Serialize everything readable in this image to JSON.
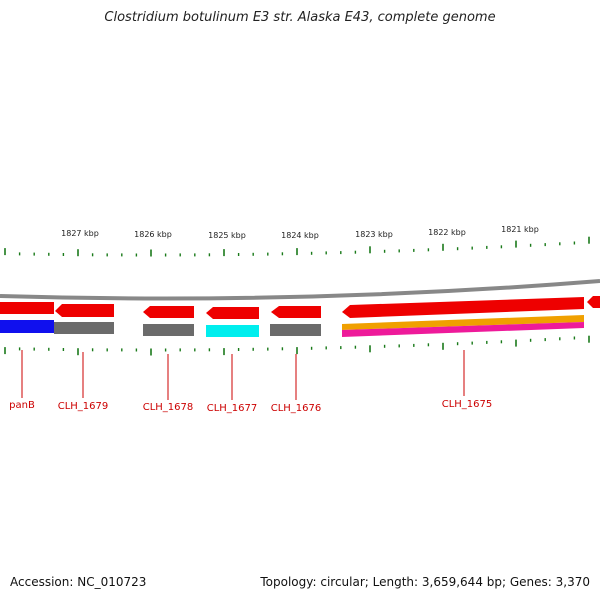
{
  "title": "Clostridium botulinum E3 str. Alaska E43, complete genome",
  "footer": {
    "accession": "Accession: NC_010723",
    "topology": "Topology: circular; Length: 3,659,644 bp; Genes: 3,370"
  },
  "kbp_labels": [
    "1827 kbp",
    "1826 kbp",
    "1825 kbp",
    "1824 kbp",
    "1823 kbp",
    "1822 kbp",
    "1821 kbp"
  ],
  "gene_labels": [
    "panB",
    "CLH_1679",
    "CLH_1678",
    "CLH_1677",
    "CLH_1676",
    "CLH_1675"
  ],
  "colors": {
    "gene_arrow": "#ee0000",
    "label": "#cc0000",
    "tick": "#1a7a1a",
    "backbone": "#888888",
    "blue": "#1010ee",
    "grey": "#6b6b6b",
    "cyan": "#00eeee",
    "orange": "#f0a000",
    "magenta": "#ee1a9a"
  }
}
